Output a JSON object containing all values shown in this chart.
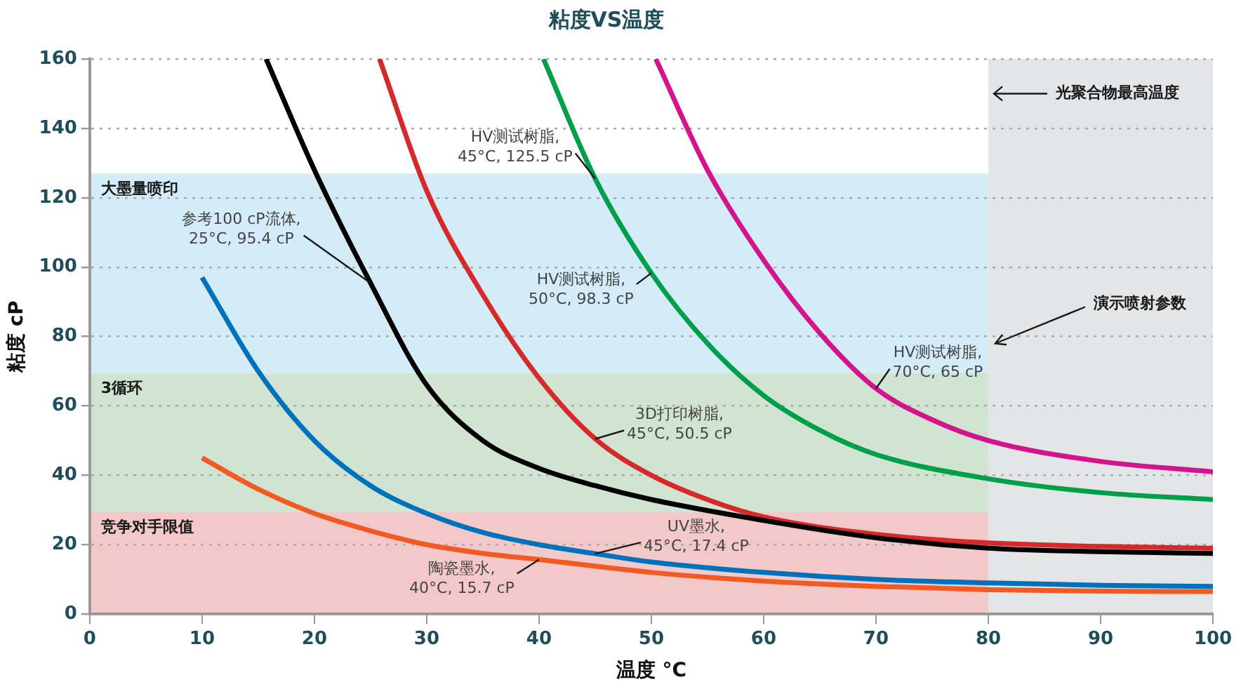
{
  "chart_data": {
    "type": "line",
    "title": "粘度VS温度",
    "xlabel": "温度 °C",
    "ylabel": "粘度 cP",
    "xlim": [
      0,
      100
    ],
    "xticks": [
      0,
      10,
      20,
      30,
      40,
      50,
      60,
      70,
      80,
      90,
      100
    ],
    "ylim": [
      0,
      160
    ],
    "yticks": [
      0,
      20,
      40,
      60,
      80,
      100,
      120,
      140,
      160
    ],
    "grid": "y",
    "legend": false,
    "marker": "none",
    "line_style": "solid",
    "bands": [
      {
        "axis": "y",
        "from": 0,
        "to": 29.5,
        "label": "竞争对手限值",
        "color": "#f2c9c8"
      },
      {
        "axis": "y",
        "from": 29.5,
        "to": 69.5,
        "label": "3循环",
        "color": "#d0e4d1"
      },
      {
        "axis": "y",
        "from": 69.5,
        "to": 127,
        "label": "大墨量喷印",
        "color": "#d3ecf8"
      },
      {
        "axis": "x",
        "from": 80,
        "to": 100,
        "color": "#e4e5e7"
      }
    ],
    "series": [
      {
        "color": "#000000",
        "x": [
          15.7,
          20,
          25,
          30,
          35,
          40,
          45,
          50,
          60,
          70,
          80,
          90,
          100
        ],
        "values": [
          160,
          128,
          95.4,
          66,
          50,
          42,
          37,
          33,
          27,
          22,
          19,
          18,
          17.5
        ]
      },
      {
        "color": "#d62a2a",
        "x": [
          25.8,
          30,
          35,
          40,
          45,
          50,
          55,
          60,
          70,
          80,
          90,
          100
        ],
        "values": [
          160,
          122,
          92,
          68,
          50.5,
          40,
          33,
          28,
          23,
          20.5,
          19.5,
          19
        ]
      },
      {
        "color": "#00a04b",
        "x": [
          40.4,
          45,
          50,
          55,
          60,
          65,
          70,
          80,
          90,
          100
        ],
        "values": [
          160,
          125.5,
          98.3,
          78,
          63,
          53,
          46,
          39,
          35,
          33
        ]
      },
      {
        "color": "#d4148c",
        "x": [
          50.4,
          55,
          60,
          65,
          70,
          75,
          80,
          90,
          100
        ],
        "values": [
          160,
          128,
          102,
          81,
          65,
          56,
          50,
          44,
          41
        ]
      },
      {
        "color": "#0072bc",
        "x": [
          10,
          15,
          20,
          25,
          30,
          35,
          40,
          45,
          50,
          60,
          70,
          80,
          90,
          100
        ],
        "values": [
          97,
          70,
          50,
          37,
          29,
          23.5,
          20,
          17.4,
          15,
          12,
          10,
          9,
          8.3,
          8
        ]
      },
      {
        "color": "#f15a22",
        "x": [
          10,
          15,
          20,
          25,
          30,
          35,
          40,
          50,
          60,
          70,
          80,
          90,
          100
        ],
        "values": [
          45,
          36,
          29,
          24,
          20,
          17.5,
          15.7,
          12,
          9.5,
          8,
          7,
          6.6,
          6.5
        ]
      }
    ],
    "annotations": [
      {
        "text": "HV测试树脂,\n45°C, 125.5 cP",
        "x": 45,
        "y": 125.5
      },
      {
        "text": "HV测试树脂,\n50°C, 98.3 cP",
        "x": 50,
        "y": 98.3
      },
      {
        "text": "HV测试树脂,\n70°C, 65 cP",
        "x": 70,
        "y": 65
      },
      {
        "text": "参考100 cP流体,\n25°C, 95.4 cP",
        "x": 25,
        "y": 95.4
      },
      {
        "text": "3D打印树脂,\n45°C, 50.5 cP",
        "x": 45,
        "y": 50.5
      },
      {
        "text": "UV墨水,\n45°C, 17.4 cP",
        "x": 45,
        "y": 17.4
      },
      {
        "text": "陶瓷墨水,\n40°C, 15.7 cP",
        "x": 40,
        "y": 15.7
      },
      {
        "text": "光聚合物最高温度",
        "x": 80,
        "y": 150
      },
      {
        "text": "演示喷射参数",
        "x": 80,
        "y": 78
      }
    ]
  }
}
